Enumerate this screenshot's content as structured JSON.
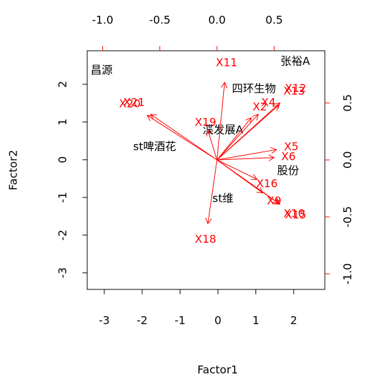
{
  "chart_data": {
    "type": "biplot",
    "xlabel": "Factor1",
    "ylabel": "Factor2",
    "xlim": [
      -3.45,
      2.82
    ],
    "ylim": [
      -3.44,
      2.89
    ],
    "xticks": [
      -3,
      -2,
      -1,
      0,
      1,
      2
    ],
    "yticks": [
      -3,
      -2,
      -1,
      0,
      1,
      2
    ],
    "x2lim": [
      -1.135,
      0.943
    ],
    "y2lim": [
      -1.137,
      0.958
    ],
    "x2ticks": [
      {
        "value": -1,
        "label": "-1.0"
      },
      {
        "value": -0.5,
        "label": "-0.5"
      },
      {
        "value": 0,
        "label": "0.0"
      },
      {
        "value": 0.5,
        "label": "0.5"
      }
    ],
    "y2ticks": [
      {
        "value": -1,
        "label": "-1.0"
      },
      {
        "value": -0.5,
        "label": "-0.5"
      },
      {
        "value": 0,
        "label": "0.0"
      },
      {
        "value": 0.5,
        "label": "0.5"
      }
    ],
    "points": {
      "color": "#000000",
      "labels": [
        "昌源",
        "张裕A",
        "四环生物",
        "渫发展A",
        "st啤酒花",
        "股份",
        "st维"
      ],
      "x": [
        -3.07,
        2.04,
        0.95,
        0.13,
        -1.67,
        1.85,
        0.13
      ],
      "y": [
        2.36,
        2.6,
        1.87,
        0.78,
        0.33,
        -0.3,
        -1.04
      ]
    },
    "arrows": {
      "color": "#ff0000",
      "labels": [
        "X11",
        "X20",
        "X21",
        "X13",
        "X12",
        "X2",
        "X4",
        "X19",
        "X5",
        "X6",
        "X16",
        "X9",
        "X10",
        "X15",
        "X18"
      ],
      "x": [
        0.067,
        -0.61,
        -0.58,
        0.54,
        0.55,
        0.3,
        0.36,
        -0.08,
        0.52,
        0.5,
        0.35,
        0.4,
        0.54,
        0.55,
        -0.08
      ],
      "y": [
        0.68,
        0.39,
        0.4,
        0.48,
        0.5,
        0.37,
        0.4,
        0.26,
        0.09,
        0.02,
        -0.17,
        -0.29,
        -0.38,
        -0.39,
        -0.56
      ]
    }
  }
}
